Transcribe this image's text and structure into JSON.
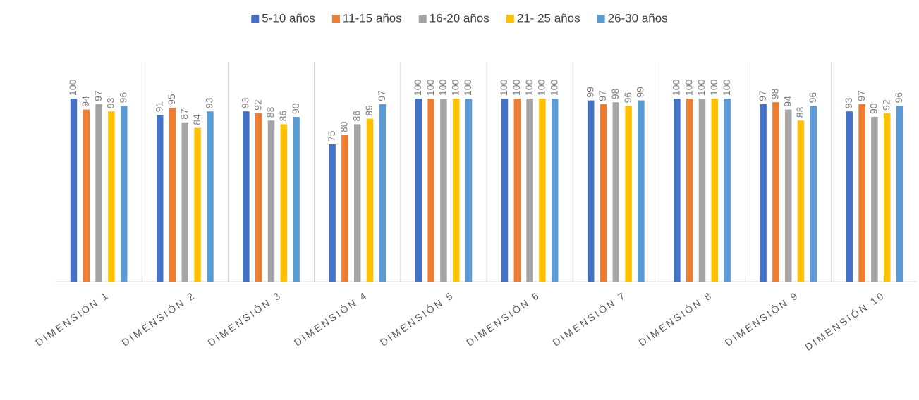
{
  "chart_data": {
    "type": "bar",
    "categories": [
      "DIMENSIÓN 1",
      "DIMENSIÓN 2",
      "DIMENSIÓN 3",
      "DIMENSIÓN 4",
      "DIMENSIÓN 5",
      "DIMENSIÓN 6",
      "DIMENSIÓN 7",
      "DIMENSIÓN 8",
      "DIMENSIÓN 9",
      "DIMENSIÓN 10"
    ],
    "series": [
      {
        "name": "5-10 años",
        "color": "#4472c4",
        "values": [
          100,
          91,
          93,
          75,
          100,
          100,
          99,
          100,
          97,
          93
        ]
      },
      {
        "name": "11-15 años",
        "color": "#ed7d31",
        "values": [
          94,
          95,
          92,
          80,
          100,
          100,
          97,
          100,
          98,
          97
        ]
      },
      {
        "name": "16-20 años",
        "color": "#a5a5a5",
        "values": [
          97,
          87,
          88,
          86,
          100,
          100,
          98,
          100,
          94,
          90
        ]
      },
      {
        "name": "21- 25 años",
        "color": "#ffc000",
        "values": [
          93,
          84,
          86,
          89,
          100,
          100,
          96,
          100,
          88,
          92
        ]
      },
      {
        "name": "26-30 años",
        "color": "#5b9bd5",
        "values": [
          96,
          93,
          90,
          97,
          100,
          100,
          99,
          100,
          96,
          96
        ]
      }
    ],
    "ylim": [
      0,
      120
    ],
    "legend": "top"
  }
}
